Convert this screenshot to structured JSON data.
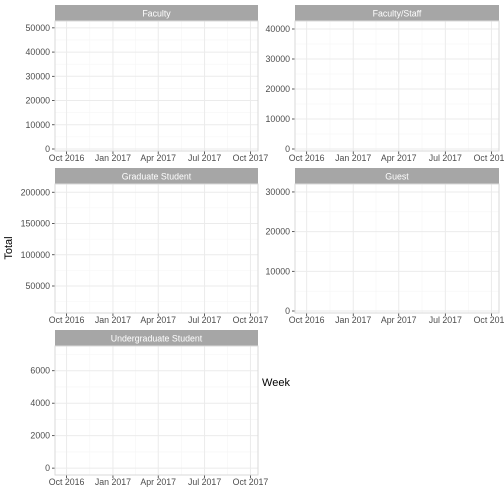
{
  "chart_data": {
    "type": "line",
    "xlabel": "Week",
    "ylabel": "Total",
    "x_ticks": [
      "Oct 2016",
      "Jan 2017",
      "Apr 2017",
      "Jul 2017",
      "Oct 2017"
    ],
    "grid": true,
    "panels": [
      {
        "name": "Faculty",
        "ylim": [
          0,
          52000
        ],
        "y_ticks": [
          0,
          10000,
          20000,
          30000,
          40000,
          50000
        ],
        "y_tick_labels": [
          "0",
          "10000",
          "20000",
          "30000",
          "40000",
          "50000"
        ],
        "series": []
      },
      {
        "name": "Faculty/Staff",
        "ylim": [
          0,
          42000
        ],
        "y_ticks": [
          0,
          10000,
          20000,
          30000,
          40000
        ],
        "y_tick_labels": [
          "0",
          "10000",
          "20000",
          "30000",
          "40000"
        ],
        "series": []
      },
      {
        "name": "Graduate Student",
        "ylim": [
          10000,
          210000
        ],
        "y_ticks": [
          50000,
          100000,
          150000,
          200000
        ],
        "y_tick_labels": [
          "50000",
          "100000",
          "150000",
          "200000"
        ],
        "series": []
      },
      {
        "name": "Guest",
        "ylim": [
          0,
          31500
        ],
        "y_ticks": [
          0,
          10000,
          20000,
          30000
        ],
        "y_tick_labels": [
          "0",
          "10000",
          "20000",
          "30000"
        ],
        "series": []
      },
      {
        "name": "Undergraduate Student",
        "ylim": [
          -300,
          7400
        ],
        "y_ticks": [
          0,
          2000,
          4000,
          6000
        ],
        "y_tick_labels": [
          "0",
          "2000",
          "4000",
          "6000"
        ],
        "series": []
      }
    ]
  },
  "colors": {
    "strip_background": "#a6a6a6",
    "grid_major": "#ebebeb",
    "grid_minor": "#f5f5f5",
    "panel_border": "#d9d9d9"
  }
}
